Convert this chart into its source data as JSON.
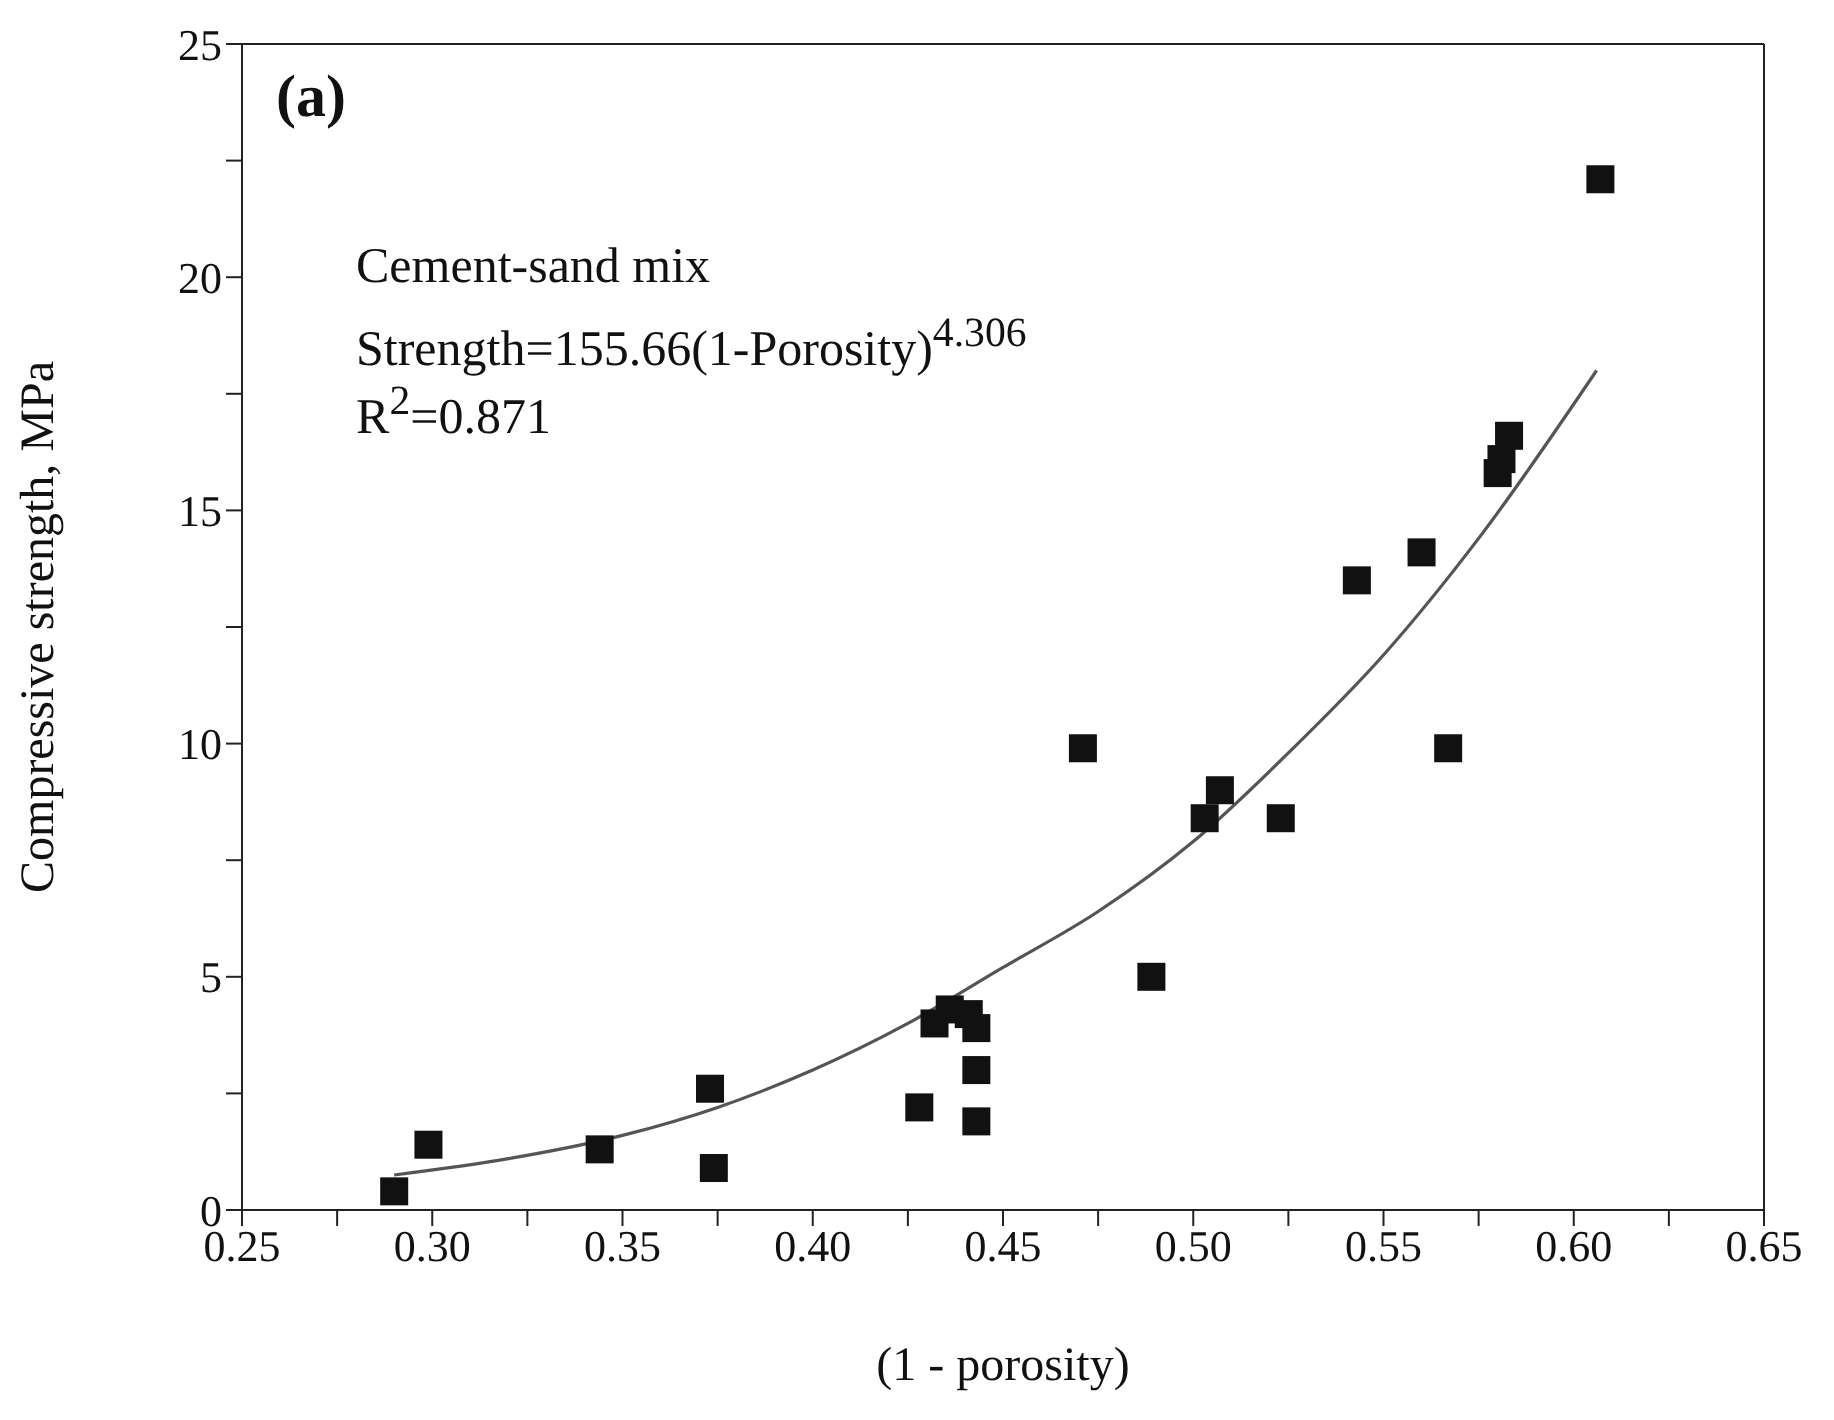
{
  "chart_data": {
    "type": "scatter",
    "xlabel": "(1 - porosity)",
    "ylabel": "Compressive strength, MPa",
    "xlim": [
      0.25,
      0.65
    ],
    "ylim": [
      0,
      25
    ],
    "xticks": [
      {
        "value": 0.25,
        "label": "0.25"
      },
      {
        "value": 0.275,
        "label": null
      },
      {
        "value": 0.3,
        "label": "0.30"
      },
      {
        "value": 0.325,
        "label": null
      },
      {
        "value": 0.35,
        "label": "0.35"
      },
      {
        "value": 0.375,
        "label": null
      },
      {
        "value": 0.4,
        "label": "0.40"
      },
      {
        "value": 0.425,
        "label": null
      },
      {
        "value": 0.45,
        "label": "0.45"
      },
      {
        "value": 0.475,
        "label": null
      },
      {
        "value": 0.5,
        "label": "0.50"
      },
      {
        "value": 0.525,
        "label": null
      },
      {
        "value": 0.55,
        "label": "0.55"
      },
      {
        "value": 0.575,
        "label": null
      },
      {
        "value": 0.6,
        "label": "0.60"
      },
      {
        "value": 0.625,
        "label": null
      },
      {
        "value": 0.65,
        "label": "0.65"
      }
    ],
    "yticks": [
      0,
      {
        "value": 2.5,
        "label": null
      },
      5,
      {
        "value": 7.5,
        "label": null
      },
      10,
      {
        "value": 12.5,
        "label": null
      },
      15,
      {
        "value": 17.5,
        "label": null
      },
      20,
      {
        "value": 22.5,
        "label": null
      },
      25
    ],
    "series": [
      {
        "marker": "square",
        "color": "#111111",
        "x": [
          0.29,
          0.299,
          0.344,
          0.373,
          0.374,
          0.428,
          0.432,
          0.436,
          0.441,
          0.443,
          0.443,
          0.443,
          0.471,
          0.507,
          0.503,
          0.523,
          0.489,
          0.607,
          0.583,
          0.581,
          0.58,
          0.56,
          0.543,
          0.567
        ],
        "values": [
          0.4,
          1.4,
          1.3,
          2.6,
          0.9,
          2.2,
          4.0,
          4.3,
          4.2,
          3.9,
          3.0,
          1.9,
          9.9,
          9.0,
          8.4,
          8.4,
          5.0,
          22.1,
          16.6,
          16.1,
          15.8,
          14.1,
          13.5,
          9.9
        ]
      },
      {
        "type": "line",
        "marker": "none",
        "color": "#555555",
        "x": [
          0.29,
          0.32,
          0.35,
          0.375,
          0.4,
          0.425,
          0.45,
          0.475,
          0.5,
          0.525,
          0.55,
          0.575,
          0.606
        ],
        "values": [
          0.75,
          1.1,
          1.6,
          2.2,
          3.0,
          4.0,
          5.2,
          6.4,
          7.9,
          9.8,
          11.9,
          14.4,
          18.0
        ]
      }
    ],
    "annotations": [
      "(a)",
      "Cement-sand mix",
      "Strength=155.66(1-Porosity)$^{4.306}$",
      "R$^{2}$=0.871"
    ]
  }
}
